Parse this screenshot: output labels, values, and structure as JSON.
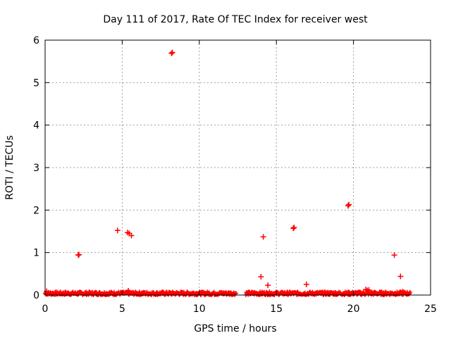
{
  "chart_data": {
    "type": "scatter",
    "title": "Day 111 of 2017, Rate Of TEC Index for receiver west",
    "xlabel": "GPS time / hours",
    "ylabel": "ROTI / TECUs",
    "xlim": [
      0,
      25
    ],
    "ylim": [
      0,
      6
    ],
    "xticks": [
      0,
      5,
      10,
      15,
      20,
      25
    ],
    "yticks": [
      0,
      1,
      2,
      3,
      4,
      5,
      6
    ],
    "grid": true,
    "marker": "+",
    "color": "#ff0000",
    "baseline_band": {
      "description": "dense band of near-zero points",
      "x_range": [
        0,
        23.7
      ],
      "y_range": [
        0,
        0.08
      ],
      "gaps": [
        [
          12.4,
          13.0
        ]
      ]
    },
    "series": [
      {
        "name": "ROTI",
        "points": [
          [
            2.15,
            0.94
          ],
          [
            2.2,
            0.95
          ],
          [
            4.7,
            1.52
          ],
          [
            5.35,
            1.47
          ],
          [
            5.45,
            1.45
          ],
          [
            5.6,
            1.4
          ],
          [
            8.2,
            5.69
          ],
          [
            8.25,
            5.71
          ],
          [
            14.0,
            0.43
          ],
          [
            14.15,
            1.37
          ],
          [
            14.45,
            0.23
          ],
          [
            16.1,
            1.57
          ],
          [
            16.15,
            1.59
          ],
          [
            16.95,
            0.25
          ],
          [
            19.65,
            2.1
          ],
          [
            19.7,
            2.13
          ],
          [
            22.65,
            0.94
          ],
          [
            23.05,
            0.44
          ],
          [
            0.1,
            0.09
          ],
          [
            5.4,
            0.1
          ],
          [
            20.8,
            0.13
          ],
          [
            20.9,
            0.11
          ],
          [
            21.0,
            0.12
          ],
          [
            23.2,
            0.08
          ]
        ]
      }
    ]
  }
}
